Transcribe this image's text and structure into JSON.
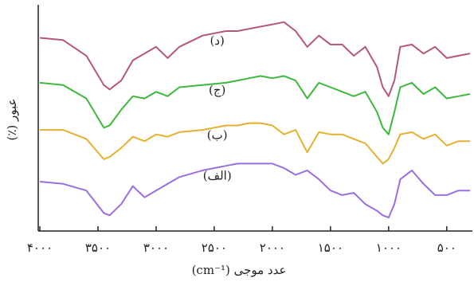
{
  "chart_data": {
    "type": "line",
    "x_label": "عدد موجی (cm⁻¹)",
    "y_label": "عبور (٪)",
    "xlim": [
      4000,
      300
    ],
    "ylim": [
      0,
      100
    ],
    "xticks": [
      {
        "value": 4000,
        "label": "۴۰۰۰"
      },
      {
        "value": 3500,
        "label": "۳۵۰۰"
      },
      {
        "value": 3000,
        "label": "۳۰۰۰"
      },
      {
        "value": 2500,
        "label": "۲۵۰۰"
      },
      {
        "value": 2000,
        "label": "۲۰۰۰"
      },
      {
        "value": 1500,
        "label": "۱۵۰۰"
      },
      {
        "value": 1000,
        "label": "۱۰۰۰"
      },
      {
        "value": 500,
        "label": "۵۰۰"
      }
    ],
    "x": [
      4000,
      3800,
      3600,
      3450,
      3400,
      3300,
      3200,
      3100,
      3000,
      2900,
      2800,
      2600,
      2400,
      2300,
      2200,
      2100,
      2000,
      1900,
      1800,
      1700,
      1600,
      1500,
      1400,
      1300,
      1200,
      1100,
      1050,
      1000,
      950,
      900,
      800,
      700,
      600,
      500,
      400,
      300
    ],
    "series": [
      {
        "name": "(د)",
        "color": "#b5577a",
        "values": [
          86,
          85,
          78,
          65,
          63,
          67,
          76,
          79,
          82,
          77,
          82,
          87,
          89,
          89,
          90,
          91,
          92,
          93,
          89,
          82,
          87,
          83,
          83,
          78,
          82,
          73,
          64,
          60,
          67,
          82,
          83,
          79,
          82,
          77,
          78,
          79
        ]
      },
      {
        "name": "(ج)",
        "color": "#3cb93c",
        "values": [
          66,
          65,
          59,
          46,
          47,
          54,
          60,
          59,
          62,
          60,
          64,
          65,
          66,
          67,
          68,
          69,
          68,
          69,
          67,
          59,
          66,
          64,
          62,
          60,
          62,
          53,
          46,
          43,
          53,
          64,
          66,
          61,
          64,
          59,
          60,
          61
        ]
      },
      {
        "name": "(ب)",
        "color": "#e6b030",
        "values": [
          45,
          45,
          41,
          32,
          33,
          37,
          42,
          40,
          43,
          42,
          44,
          45,
          47,
          47,
          48,
          48,
          47,
          43,
          45,
          35,
          44,
          43,
          43,
          41,
          39,
          33,
          30,
          32,
          37,
          43,
          44,
          41,
          43,
          38,
          40,
          40
        ]
      },
      {
        "name": "(الف)",
        "color": "#9b6ee0",
        "values": [
          22,
          21,
          18,
          8,
          7,
          12,
          20,
          15,
          18,
          21,
          24,
          27,
          29,
          30,
          30,
          30,
          30,
          28,
          25,
          27,
          23,
          18,
          16,
          17,
          12,
          9,
          7,
          6,
          12,
          23,
          27,
          21,
          16,
          16,
          18,
          18
        ]
      }
    ]
  }
}
